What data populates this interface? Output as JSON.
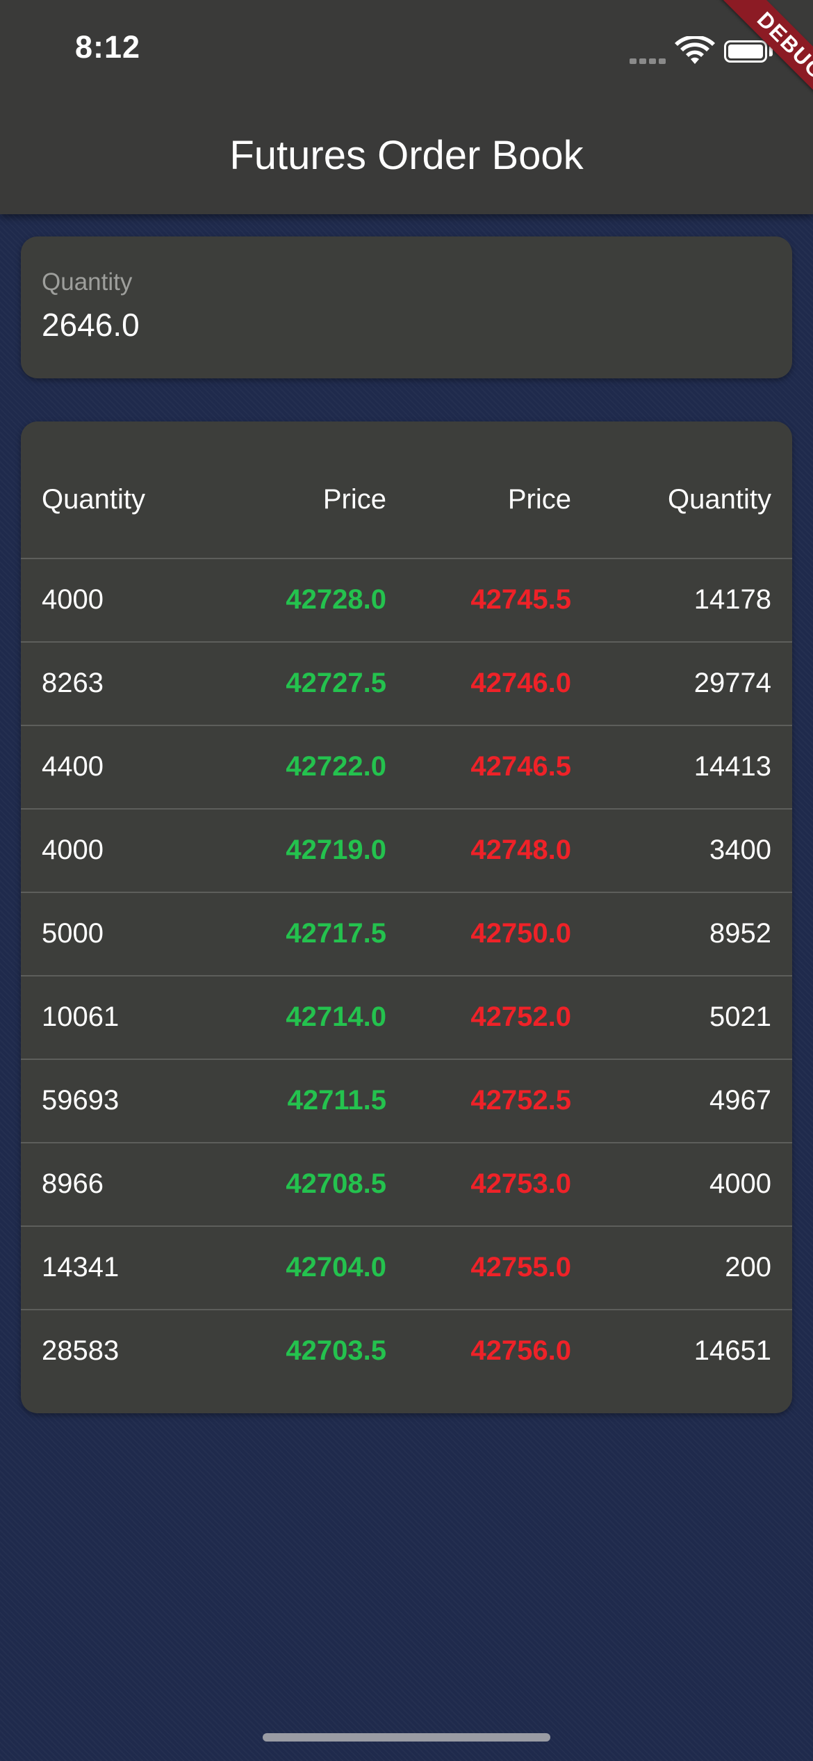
{
  "status_bar": {
    "time": "8:12",
    "icons": [
      "cellular-signal-icon",
      "wifi-icon",
      "battery-icon"
    ]
  },
  "debug_banner": "DEBUG",
  "app_bar": {
    "title": "Futures Order Book"
  },
  "quantity_field": {
    "label": "Quantity",
    "value": "2646.0"
  },
  "order_book": {
    "headers": [
      "Quantity",
      "Price",
      "Price",
      "Quantity"
    ],
    "rows": [
      {
        "bid_qty": "4000",
        "bid_price": "42728.0",
        "ask_price": "42745.5",
        "ask_qty": "14178"
      },
      {
        "bid_qty": "8263",
        "bid_price": "42727.5",
        "ask_price": "42746.0",
        "ask_qty": "29774"
      },
      {
        "bid_qty": "4400",
        "bid_price": "42722.0",
        "ask_price": "42746.5",
        "ask_qty": "14413"
      },
      {
        "bid_qty": "4000",
        "bid_price": "42719.0",
        "ask_price": "42748.0",
        "ask_qty": "3400"
      },
      {
        "bid_qty": "5000",
        "bid_price": "42717.5",
        "ask_price": "42750.0",
        "ask_qty": "8952"
      },
      {
        "bid_qty": "10061",
        "bid_price": "42714.0",
        "ask_price": "42752.0",
        "ask_qty": "5021"
      },
      {
        "bid_qty": "59693",
        "bid_price": "42711.5",
        "ask_price": "42752.5",
        "ask_qty": "4967"
      },
      {
        "bid_qty": "8966",
        "bid_price": "42708.5",
        "ask_price": "42753.0",
        "ask_qty": "4000"
      },
      {
        "bid_qty": "14341",
        "bid_price": "42704.0",
        "ask_price": "42755.0",
        "ask_qty": "200"
      },
      {
        "bid_qty": "28583",
        "bid_price": "42703.5",
        "ask_price": "42756.0",
        "ask_qty": "14651"
      }
    ]
  },
  "colors": {
    "background": "#1f2a4c",
    "app_bar": "#3a3a39",
    "card": "#3d3e3b",
    "bid": "#24c24e",
    "ask": "#ef2228",
    "debug_banner": "#8c1b24"
  }
}
